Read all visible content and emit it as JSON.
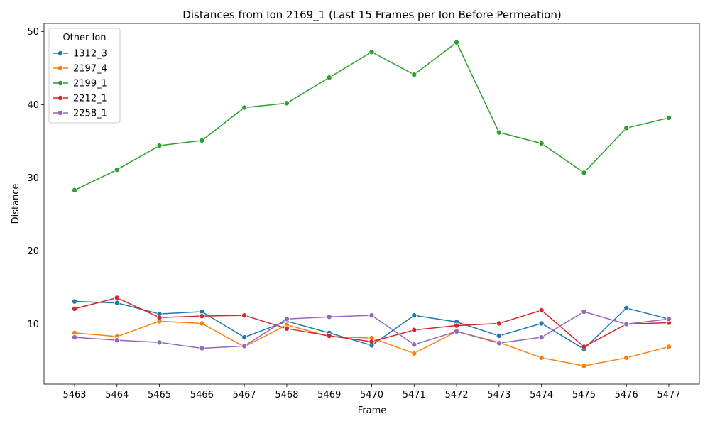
{
  "chart_data": {
    "type": "line",
    "title": "Distances from Ion 2169_1 (Last 15 Frames per Ion Before Permeation)",
    "xlabel": "Frame",
    "ylabel": "Distance",
    "categories": [
      "5463",
      "5464",
      "5465",
      "5466",
      "5467",
      "5468",
      "5469",
      "5470",
      "5471",
      "5472",
      "5473",
      "5474",
      "5475",
      "5476",
      "5477"
    ],
    "ylim": [
      1.8,
      51.1
    ],
    "yticks": [
      10,
      20,
      30,
      40,
      50
    ],
    "grid": false,
    "legend": {
      "title": "Other Ion",
      "placement": "top-left"
    },
    "series": [
      {
        "name": "1312_3",
        "color": "#1f77b4",
        "values": [
          13.1,
          12.9,
          11.4,
          11.7,
          8.2,
          10.4,
          8.8,
          7.1,
          11.2,
          10.3,
          8.4,
          10.1,
          6.6,
          12.2,
          10.7
        ]
      },
      {
        "name": "2197_4",
        "color": "#ff7f0e",
        "values": [
          8.8,
          8.3,
          10.4,
          10.1,
          6.9,
          9.9,
          8.3,
          8.1,
          6.0,
          9.0,
          7.5,
          5.4,
          4.3,
          5.4,
          6.9
        ]
      },
      {
        "name": "2199_1",
        "color": "#2ca02c",
        "values": [
          28.3,
          31.1,
          34.4,
          35.1,
          39.6,
          40.2,
          43.7,
          47.2,
          44.1,
          48.5,
          36.2,
          34.7,
          30.7,
          36.8,
          38.2
        ]
      },
      {
        "name": "2212_1",
        "color": "#d62728",
        "values": [
          12.1,
          13.6,
          10.9,
          11.1,
          11.2,
          9.4,
          8.4,
          7.6,
          9.2,
          9.8,
          10.1,
          11.9,
          6.9,
          10.0,
          10.2
        ]
      },
      {
        "name": "2258_1",
        "color": "#9467bd",
        "values": [
          8.2,
          7.8,
          7.5,
          6.7,
          7.0,
          10.7,
          11.0,
          11.2,
          7.2,
          9.0,
          7.4,
          8.2,
          11.7,
          10.0,
          10.7
        ]
      }
    ]
  }
}
